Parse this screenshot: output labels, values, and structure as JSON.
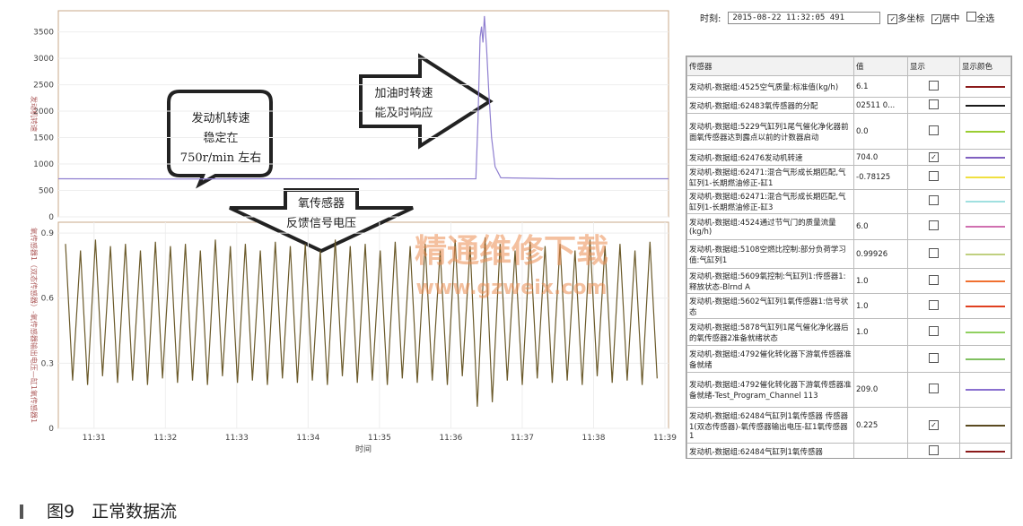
{
  "chart_data": [
    {
      "type": "line",
      "y_label": "发动机转速",
      "xlim": [
        30.5,
        39.05
      ],
      "ylim": [
        0,
        3900
      ],
      "yticks": [
        0,
        500,
        1000,
        1500,
        2000,
        2500,
        3000,
        3500
      ],
      "grid": true,
      "series": [
        {
          "color": "#8f7fd0",
          "x": [
            30.5,
            32.0,
            33.5,
            35.0,
            36.35,
            36.38,
            36.41,
            36.43,
            36.45,
            36.47,
            36.5,
            36.53,
            36.57,
            36.62,
            36.7,
            37.5,
            39.05
          ],
          "values": [
            720,
            715,
            720,
            718,
            720,
            1800,
            3400,
            3600,
            3300,
            3800,
            3200,
            2400,
            1500,
            950,
            740,
            720,
            720
          ]
        }
      ]
    },
    {
      "type": "line",
      "y_label": "氧传感器1（双态传感器）-氧传感器输出电压—缸1氧传感器1",
      "x_label": "时间",
      "xlim": [
        30.5,
        39.05
      ],
      "ylim": [
        0,
        0.95
      ],
      "yticks": [
        0,
        0.3,
        0.6,
        0.9
      ],
      "xticks": [
        {
          "value": 31,
          "label": "11:31"
        },
        {
          "value": 32,
          "label": "11:32"
        },
        {
          "value": 33,
          "label": "11:33"
        },
        {
          "value": 34,
          "label": "11:34"
        },
        {
          "value": 35,
          "label": "11:35"
        },
        {
          "value": 36,
          "label": "11:36"
        },
        {
          "value": 37,
          "label": "11:37"
        },
        {
          "value": 38,
          "label": "11:38"
        },
        {
          "value": 39,
          "label": "11:39"
        }
      ],
      "grid": true,
      "series": [
        {
          "color": "#6b5a2a",
          "x": [
            30.6,
            30.7,
            30.81,
            30.91,
            31.02,
            31.12,
            31.23,
            31.33,
            31.44,
            31.54,
            31.65,
            31.75,
            31.86,
            31.96,
            32.07,
            32.17,
            32.28,
            32.38,
            32.49,
            32.59,
            32.7,
            32.8,
            32.91,
            33.01,
            33.12,
            33.22,
            33.33,
            33.43,
            33.54,
            33.64,
            33.75,
            33.85,
            33.96,
            34.06,
            34.17,
            34.27,
            34.38,
            34.48,
            34.59,
            34.69,
            34.8,
            34.9,
            35.01,
            35.11,
            35.22,
            35.32,
            35.43,
            35.53,
            35.64,
            35.74,
            35.85,
            35.95,
            36.06,
            36.16,
            36.27,
            36.37,
            36.48,
            36.58,
            36.69,
            36.79,
            36.9,
            37.0,
            37.11,
            37.21,
            37.32,
            37.42,
            37.53,
            37.63,
            37.74,
            37.84,
            37.95,
            38.05,
            38.16,
            38.26,
            38.37,
            38.47,
            38.58,
            38.68,
            38.79,
            38.89
          ],
          "values": [
            0.85,
            0.22,
            0.82,
            0.2,
            0.87,
            0.24,
            0.84,
            0.21,
            0.85,
            0.22,
            0.82,
            0.2,
            0.86,
            0.23,
            0.84,
            0.21,
            0.85,
            0.22,
            0.82,
            0.2,
            0.87,
            0.24,
            0.84,
            0.21,
            0.85,
            0.22,
            0.82,
            0.2,
            0.86,
            0.23,
            0.84,
            0.21,
            0.85,
            0.22,
            0.82,
            0.2,
            0.87,
            0.24,
            0.84,
            0.21,
            0.85,
            0.22,
            0.82,
            0.2,
            0.86,
            0.23,
            0.84,
            0.21,
            0.85,
            0.22,
            0.82,
            0.2,
            0.87,
            0.24,
            0.84,
            0.1,
            0.88,
            0.12,
            0.85,
            0.22,
            0.82,
            0.2,
            0.86,
            0.23,
            0.84,
            0.21,
            0.85,
            0.22,
            0.82,
            0.2,
            0.87,
            0.24,
            0.84,
            0.21,
            0.85,
            0.22,
            0.82,
            0.2,
            0.86,
            0.23
          ]
        }
      ]
    }
  ],
  "callouts": {
    "rpm": [
      "发动机转速",
      "稳定在",
      "750r/min 左右"
    ],
    "throttle": [
      "加油时转速",
      "能及时响应"
    ],
    "o2": [
      "氧传感器",
      "反馈信号电压"
    ]
  },
  "watermark": [
    "精通维修下载",
    "www.gzweix.com"
  ],
  "toolbar": {
    "time_label": "时刻:",
    "time_value": "2015-08-22 11:32:05 491",
    "options": [
      {
        "label": "多坐标",
        "checked": true
      },
      {
        "label": "居中",
        "checked": true
      },
      {
        "label": "全选",
        "checked": false
      }
    ]
  },
  "table": {
    "headers": [
      "传感器",
      "值",
      "显示",
      "显示颜色"
    ],
    "rows": [
      {
        "sensor": "发动机-数据组:4525空气质量:标准值(kg/h)",
        "value": "6.1",
        "checked": false,
        "color": "#8b1a1a"
      },
      {
        "sensor": "发动机-数据组:62483氧传感器的分配",
        "value": "02511  0...",
        "checked": false,
        "color": "#1a1a1a"
      },
      {
        "sensor": "发动机-数据组:5229气缸列1尾气催化净化器前面氧传感器达到露点以前的计数器启动",
        "value": "0.0",
        "checked": false,
        "color": "#9acd32"
      },
      {
        "sensor": "发动机-数据组:62476发动机转速",
        "value": "704.0",
        "checked": true,
        "color": "#8060c0"
      },
      {
        "sensor": "发动机-数据组:62471:混合气形成长期匹配,气缸列1-长期燃油修正-缸1",
        "value": "-0.78125",
        "checked": false,
        "color": "#f0e040"
      },
      {
        "sensor": "发动机-数据组:62471:混合气形成长期匹配,气缸列1-长期燃油修正-缸3",
        "checked": false,
        "color": "#a0e0e0"
      },
      {
        "sensor": "发动机-数据组:4524通过节气门的质量流量(kg/h)",
        "value": "6.0",
        "checked": false,
        "color": "#d070b0"
      },
      {
        "sensor": "发动机-数据组:5108空燃比控制:部分负荷学习值:气缸列1",
        "value": "0.99926",
        "checked": false,
        "color": "#c0d080"
      },
      {
        "sensor": "发动机-数据组:5609氧控制:气缸列1:传感器1:释放状态-Blrnd A",
        "value": "1.0",
        "checked": false,
        "color": "#f07030"
      },
      {
        "sensor": "发动机-数据组:5602气缸列1氧传感器1:信号状态",
        "value": "1.0",
        "checked": false,
        "color": "#e04020"
      },
      {
        "sensor": "发动机-数据组:5878气缸列1尾气催化净化器后的氧传感器2准备就绪状态",
        "value": "1.0",
        "checked": false,
        "color": "#90d060"
      },
      {
        "sensor": "发动机-数据组:4792催化转化器下游氧传感器准备就绪",
        "checked": false,
        "color": "#80c060"
      },
      {
        "sensor": "发动机-数据组:4792催化转化器下游氧传感器准备就绪-Test_Program_Channel 113",
        "value": "209.0",
        "checked": false,
        "color": "#8a70d0"
      },
      {
        "sensor": "发动机-数据组:62484气缸列1氧传感器 传感器1(双态传感器)-氧传感器输出电压-缸1氧传感器1",
        "value": "0.225",
        "checked": true,
        "color": "#5a4a20"
      },
      {
        "sensor": "发动机-数据组:62484气缸列1氧传感器",
        "checked": false,
        "color": "#8b1a1a"
      }
    ]
  },
  "caption": "图9　正常数据流"
}
